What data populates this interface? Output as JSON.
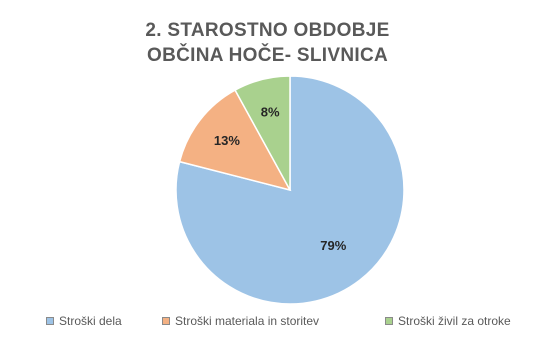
{
  "chart_data": {
    "type": "pie",
    "title_line1": "2. STAROSTNO OBDOBJE",
    "title_line2": "OBČINA HOČE- SLIVNICA",
    "categories": [
      "Stroški dela",
      "Stroški materiala in storitev",
      "Stroški živil za otroke"
    ],
    "values": [
      79,
      13,
      8
    ],
    "data_labels": [
      "79%",
      "13%",
      "8%"
    ],
    "colors": [
      "#9dc3e6",
      "#f4b183",
      "#a9d18e"
    ],
    "legend_position": "bottom"
  }
}
